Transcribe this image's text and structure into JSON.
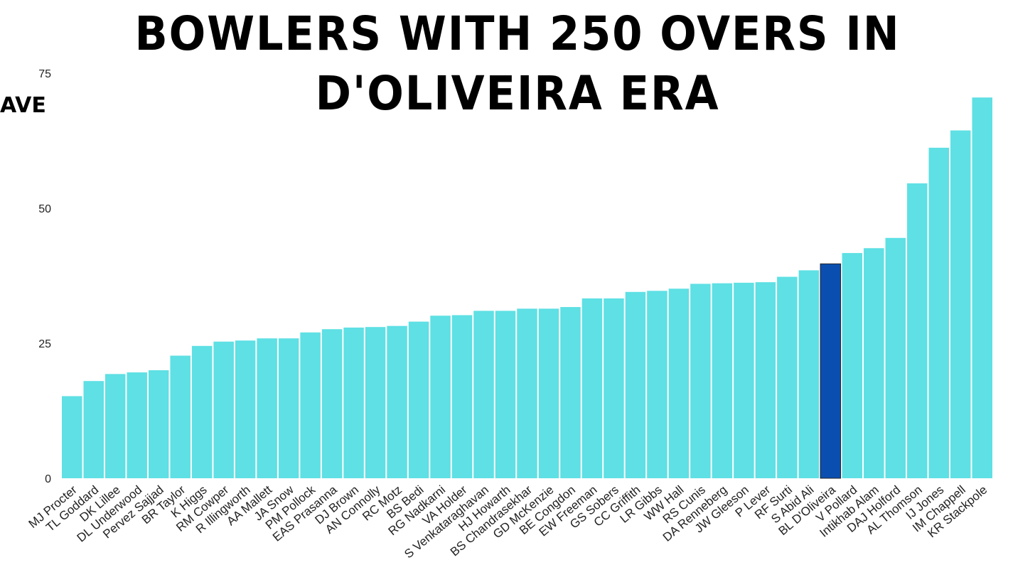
{
  "chart_data": {
    "type": "bar",
    "title": "BOWLERS WITH 250 OVERS IN D'OLIVEIRA ERA",
    "xlabel": "",
    "ylabel": "AVE",
    "ylim": [
      0,
      75
    ],
    "yticks": [
      0,
      25,
      50,
      75
    ],
    "grid": false,
    "colors": {
      "default": "#5ee0e4",
      "highlight": "#0a4fb0"
    },
    "highlight": "BL D'Oliveira",
    "categories": [
      "MJ Procter",
      "TL Goddard",
      "DK Lillee",
      "DL Underwood",
      "Pervez Sajjad",
      "BR Taylor",
      "K Higgs",
      "RM Cowper",
      "R Illingworth",
      "AA Mallett",
      "JA Snow",
      "PM Pollock",
      "EAS Prasanna",
      "DJ Brown",
      "AN Connolly",
      "RC Motz",
      "BS Bedi",
      "RG Nadkarni",
      "VA Holder",
      "S Venkataraghavan",
      "HJ Howarth",
      "BS Chandrasekhar",
      "GD McKenzie",
      "BE Congdon",
      "EW Freeman",
      "GS Sobers",
      "CC Griffith",
      "LR Gibbs",
      "WW Hall",
      "RS Cunis",
      "DA Renneberg",
      "JW Gleeson",
      "P Lever",
      "RF Surti",
      "S Abid Ali",
      "BL D'Oliveira",
      "V Pollard",
      "Intikhab Alam",
      "DAJ Holford",
      "AL Thomson",
      "IJ Jones",
      "IM Chappell",
      "KR Stackpole"
    ],
    "values": [
      15.2,
      18.0,
      19.3,
      19.6,
      20.0,
      22.7,
      24.5,
      25.3,
      25.5,
      25.9,
      25.9,
      27.0,
      27.6,
      27.9,
      28.0,
      28.2,
      29.0,
      30.1,
      30.2,
      31.0,
      31.0,
      31.4,
      31.4,
      31.7,
      33.3,
      33.3,
      34.5,
      34.7,
      35.1,
      36.0,
      36.1,
      36.2,
      36.3,
      37.3,
      38.5,
      39.7,
      41.7,
      42.6,
      44.5,
      54.6,
      61.2,
      64.4,
      70.5
    ]
  }
}
